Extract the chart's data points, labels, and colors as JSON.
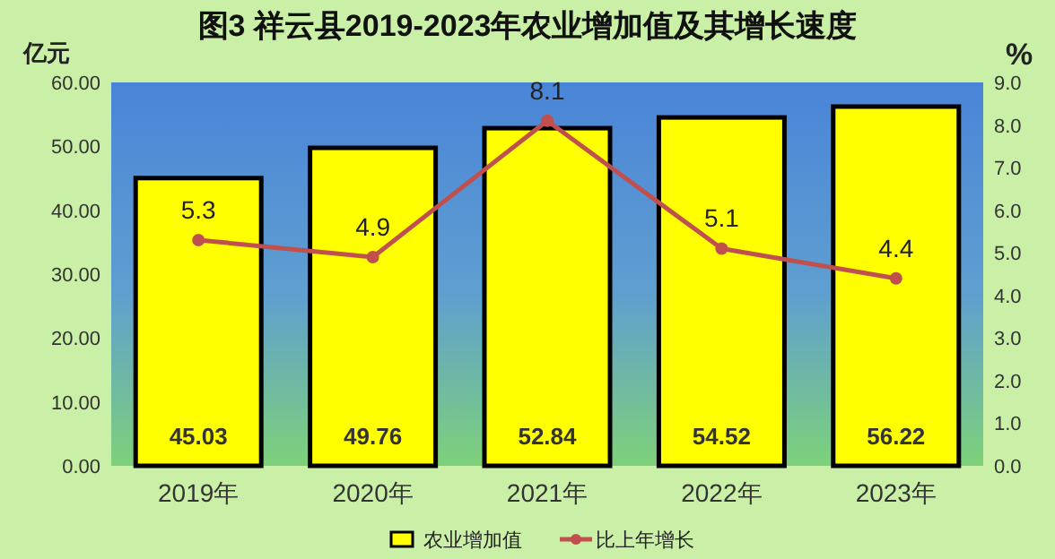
{
  "chart_data": {
    "type": "bar",
    "title": "图3  祥云县2019-2023年农业增加值及其增长速度",
    "ylabel": "亿元",
    "y2label": "%",
    "categories": [
      "2019年",
      "2020年",
      "2021年",
      "2022年",
      "2023年"
    ],
    "series": [
      {
        "name": "农业增加值",
        "color": "#ffff00",
        "values": [
          45.03,
          49.76,
          52.84,
          54.52,
          56.22
        ]
      },
      {
        "name": "比上年增长",
        "type": "line",
        "axis": "y2",
        "color": "#c0504d",
        "values": [
          5.3,
          4.9,
          8.1,
          5.1,
          4.4
        ]
      }
    ],
    "ylim": [
      0,
      60
    ],
    "yticks": [
      {
        "value": 0,
        "label": "0.00"
      },
      {
        "value": 10,
        "label": "10.00"
      },
      {
        "value": 20,
        "label": "20.00"
      },
      {
        "value": 30,
        "label": "30.00"
      },
      {
        "value": 40,
        "label": "40.00"
      },
      {
        "value": 50,
        "label": "50.00"
      },
      {
        "value": 60,
        "label": "60.00"
      }
    ],
    "y2lim": [
      0,
      9
    ],
    "y2ticks": [
      {
        "value": 0,
        "label": "0.0"
      },
      {
        "value": 1,
        "label": "1.0"
      },
      {
        "value": 2,
        "label": "2.0"
      },
      {
        "value": 3,
        "label": "3.0"
      },
      {
        "value": 4,
        "label": "4.0"
      },
      {
        "value": 5,
        "label": "5.0"
      },
      {
        "value": 6,
        "label": "6.0"
      },
      {
        "value": 7,
        "label": "7.0"
      },
      {
        "value": 8,
        "label": "8.0"
      },
      {
        "value": 9,
        "label": "9.0"
      }
    ],
    "data_labels": true,
    "legend": "bottom",
    "marker": "circle",
    "grid": false
  }
}
